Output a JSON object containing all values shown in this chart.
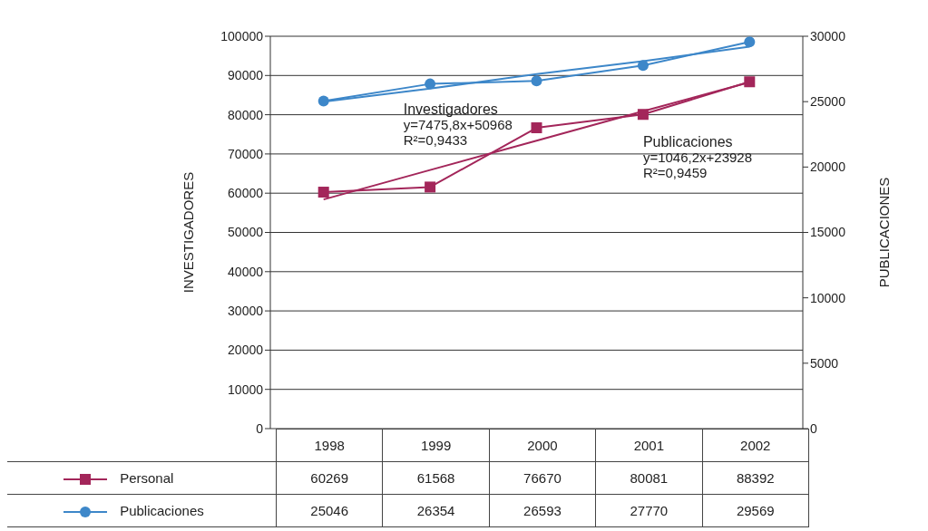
{
  "chart_data": {
    "type": "line",
    "ylabel": "INVESTIGADORES",
    "y2label": "PUBLICACIONES",
    "categories": [
      "1998",
      "1999",
      "2000",
      "2001",
      "2002"
    ],
    "series": [
      {
        "name": "Personal",
        "color": "#a3265a",
        "marker": "square",
        "values": [
          60269,
          61568,
          76670,
          80081,
          88392
        ],
        "value_labels": [
          "60269",
          "61568",
          "76670",
          "80081",
          "88392"
        ]
      },
      {
        "name": "Publicaciones",
        "color": "#3d87c9",
        "marker": "circle",
        "axis": "y2",
        "values": [
          25046,
          26354,
          26593,
          27770,
          29569
        ],
        "value_labels": [
          "25046",
          "26354",
          "26593",
          "27770",
          "29569"
        ]
      },
      {
        "type": "line",
        "color": "#a3265a",
        "marker": "none",
        "values": [
          58400,
          65900,
          73400,
          80900,
          88300
        ]
      },
      {
        "type": "line",
        "color": "#3d87c9",
        "marker": "none",
        "axis": "y2",
        "values": [
          25000,
          26000,
          27100,
          28100,
          29200
        ]
      }
    ],
    "ylim": [
      0,
      100000
    ],
    "yticks": [
      0,
      10000,
      20000,
      30000,
      40000,
      50000,
      60000,
      70000,
      80000,
      90000,
      100000
    ],
    "y2lim": [
      0,
      30000
    ],
    "y2ticks": [
      0,
      5000,
      10000,
      15000,
      20000,
      25000,
      30000
    ],
    "grid": "y",
    "legend": "bottom",
    "annotations": [
      "Investigadores\ny=7475,8x+50968\nR²=0,9433",
      "Publicaciones\ny=1046,2x+23928\nR²=0,9459"
    ]
  }
}
